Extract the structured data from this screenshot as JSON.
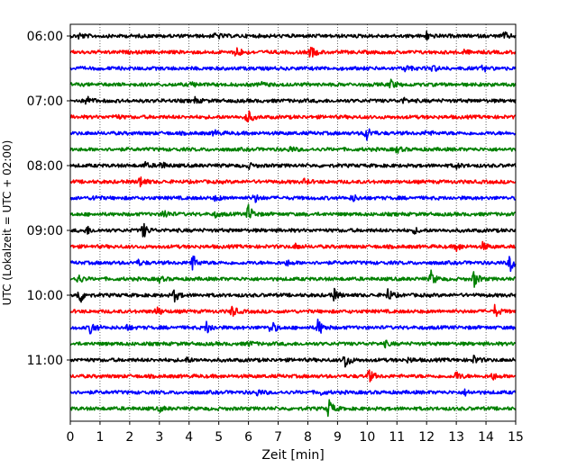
{
  "chart_data": {
    "type": "line",
    "subtype": "helicorder",
    "xlabel": "Zeit  [min]",
    "ylabel": "UTC (Lokalzeit = UTC + 02:00)",
    "xlim": [
      0,
      15
    ],
    "x_ticks": [
      "0",
      "1",
      "2",
      "3",
      "4",
      "5",
      "6",
      "7",
      "8",
      "9",
      "10",
      "11",
      "12",
      "13",
      "14",
      "15"
    ],
    "y_tick_labels": [
      "06:00",
      "07:00",
      "08:00",
      "09:00",
      "10:00",
      "11:00"
    ],
    "trace_colors": [
      "#000000",
      "#ff0000",
      "#0000ff",
      "#008000"
    ],
    "vertical_grid": "dotted",
    "traces": [
      {
        "start": "06:00",
        "events": [
          [
            4.9,
            0.45
          ],
          [
            12.0,
            0.45
          ],
          [
            14.6,
            0.45
          ],
          [
            0.3,
            0.35
          ]
        ]
      },
      {
        "start": "06:15",
        "events": [
          [
            5.6,
            0.75
          ],
          [
            8.1,
            0.8
          ],
          [
            13.2,
            0.35
          ]
        ]
      },
      {
        "start": "06:30",
        "events": [
          [
            11.3,
            0.4
          ],
          [
            12.2,
            0.4
          ],
          [
            13.9,
            0.35
          ]
        ]
      },
      {
        "start": "06:45",
        "events": [
          [
            10.8,
            0.55
          ],
          [
            6.4,
            0.3
          ],
          [
            4.1,
            0.3
          ]
        ]
      },
      {
        "start": "07:00",
        "events": [
          [
            0.55,
            0.6
          ],
          [
            4.2,
            0.3
          ],
          [
            11.2,
            0.3
          ]
        ]
      },
      {
        "start": "07:15",
        "events": [
          [
            5.95,
            1.0
          ],
          [
            1.5,
            0.3
          ]
        ]
      },
      {
        "start": "07:30",
        "events": [
          [
            9.95,
            1.1
          ],
          [
            4.85,
            0.35
          ],
          [
            12.0,
            0.3
          ]
        ]
      },
      {
        "start": "07:45",
        "events": [
          [
            11.0,
            0.35
          ],
          [
            7.4,
            0.3
          ]
        ]
      },
      {
        "start": "08:00",
        "events": [
          [
            3.05,
            0.5
          ],
          [
            2.5,
            0.35
          ],
          [
            6.0,
            0.3
          ],
          [
            13.0,
            0.3
          ]
        ]
      },
      {
        "start": "08:15",
        "events": [
          [
            2.35,
            0.75
          ],
          [
            7.9,
            0.3
          ]
        ]
      },
      {
        "start": "08:30",
        "events": [
          [
            6.2,
            0.55
          ],
          [
            9.5,
            0.45
          ],
          [
            4.9,
            0.35
          ],
          [
            0.8,
            0.3
          ]
        ]
      },
      {
        "start": "08:45",
        "events": [
          [
            6.0,
            1.2
          ],
          [
            3.15,
            0.6
          ],
          [
            4.9,
            0.3
          ]
        ]
      },
      {
        "start": "09:00",
        "events": [
          [
            2.45,
            0.95
          ],
          [
            0.55,
            0.5
          ],
          [
            11.6,
            0.3
          ]
        ]
      },
      {
        "start": "09:15",
        "events": [
          [
            13.0,
            0.55
          ],
          [
            13.9,
            0.5
          ],
          [
            7.6,
            0.3
          ]
        ]
      },
      {
        "start": "09:30",
        "events": [
          [
            4.1,
            1.1
          ],
          [
            14.8,
            1.2
          ],
          [
            2.3,
            0.3
          ],
          [
            7.3,
            0.3
          ]
        ]
      },
      {
        "start": "09:45",
        "events": [
          [
            12.15,
            0.9
          ],
          [
            13.6,
            1.0
          ],
          [
            0.25,
            0.6
          ],
          [
            3.0,
            0.3
          ]
        ]
      },
      {
        "start": "10:00",
        "events": [
          [
            0.3,
            1.2
          ],
          [
            3.5,
            0.75
          ],
          [
            8.85,
            0.9
          ],
          [
            10.7,
            0.75
          ]
        ]
      },
      {
        "start": "10:15",
        "events": [
          [
            2.9,
            0.6
          ],
          [
            5.45,
            0.7
          ],
          [
            14.3,
            0.75
          ]
        ]
      },
      {
        "start": "10:30",
        "events": [
          [
            0.7,
            0.95
          ],
          [
            4.6,
            0.85
          ],
          [
            6.75,
            0.95
          ],
          [
            8.35,
            1.1
          ],
          [
            1.9,
            0.3
          ]
        ]
      },
      {
        "start": "10:45",
        "events": [
          [
            6.0,
            0.3
          ],
          [
            10.6,
            0.3
          ]
        ]
      },
      {
        "start": "11:00",
        "events": [
          [
            9.25,
            1.1
          ],
          [
            13.6,
            0.5
          ],
          [
            3.9,
            0.3
          ],
          [
            11.4,
            0.3
          ]
        ]
      },
      {
        "start": "11:15",
        "events": [
          [
            10.05,
            0.85
          ],
          [
            13.0,
            0.55
          ],
          [
            14.2,
            0.45
          ]
        ]
      },
      {
        "start": "11:30",
        "events": [
          [
            6.3,
            0.35
          ],
          [
            8.4,
            0.3
          ],
          [
            13.3,
            0.3
          ]
        ]
      },
      {
        "start": "11:45",
        "events": [
          [
            8.7,
            1.2
          ],
          [
            3.0,
            0.3
          ]
        ]
      }
    ]
  }
}
